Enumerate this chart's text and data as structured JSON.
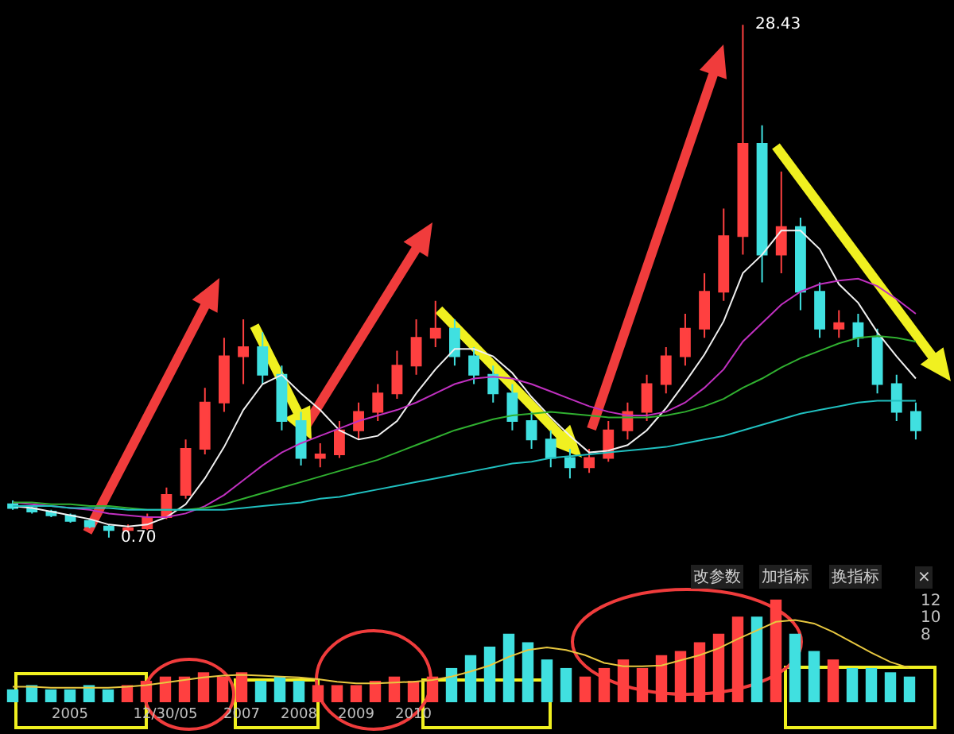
{
  "chart_data": [
    {
      "type": "candlestick",
      "categories": [
        null,
        null,
        null,
        null,
        null,
        null,
        null,
        null,
        null,
        null,
        null,
        null,
        null,
        null,
        null,
        null,
        null,
        null,
        null,
        null,
        null,
        null,
        null,
        null,
        null,
        null,
        null,
        null,
        null,
        null,
        null,
        null,
        null,
        null,
        null,
        null,
        null,
        null,
        null,
        null,
        null,
        null,
        null,
        null,
        null,
        null,
        null,
        null
      ],
      "ohlc": [
        [
          2.5,
          2.7,
          2.2,
          2.3
        ],
        [
          2.3,
          2.4,
          2.0,
          2.1
        ],
        [
          2.1,
          2.2,
          1.8,
          1.9
        ],
        [
          1.9,
          2.0,
          1.5,
          1.6
        ],
        [
          1.6,
          1.7,
          1.2,
          1.3
        ],
        [
          1.3,
          1.4,
          0.7,
          1.1
        ],
        [
          1.1,
          1.4,
          1.0,
          1.2
        ],
        [
          1.2,
          2.0,
          1.1,
          1.8
        ],
        [
          1.8,
          3.4,
          1.7,
          3.0
        ],
        [
          3.0,
          6.0,
          2.8,
          5.5
        ],
        [
          5.5,
          8.8,
          5.2,
          8.0
        ],
        [
          8.0,
          11.5,
          7.5,
          10.5
        ],
        [
          10.5,
          12.5,
          9.0,
          11.0
        ],
        [
          11.0,
          11.8,
          9.0,
          9.5
        ],
        [
          9.5,
          10.0,
          6.5,
          7.0
        ],
        [
          7.0,
          7.5,
          4.6,
          5.0
        ],
        [
          5.0,
          5.8,
          4.5,
          5.2
        ],
        [
          5.2,
          7.0,
          5.0,
          6.5
        ],
        [
          6.5,
          8.0,
          6.0,
          7.5
        ],
        [
          7.5,
          9.0,
          7.0,
          8.5
        ],
        [
          8.5,
          10.8,
          8.2,
          10.0
        ],
        [
          10.0,
          12.5,
          9.5,
          11.5
        ],
        [
          11.5,
          13.5,
          11.0,
          12.0
        ],
        [
          12.0,
          12.5,
          10.0,
          10.5
        ],
        [
          10.5,
          11.0,
          9.0,
          9.5
        ],
        [
          9.5,
          10.0,
          8.0,
          8.5
        ],
        [
          8.5,
          9.0,
          6.5,
          7.0
        ],
        [
          7.0,
          7.5,
          5.5,
          6.0
        ],
        [
          6.0,
          6.5,
          4.5,
          5.0
        ],
        [
          5.0,
          5.5,
          3.9,
          4.5
        ],
        [
          4.5,
          5.5,
          4.2,
          5.0
        ],
        [
          5.0,
          7.0,
          4.8,
          6.5
        ],
        [
          6.5,
          8.0,
          6.0,
          7.5
        ],
        [
          7.5,
          9.5,
          7.0,
          9.0
        ],
        [
          9.0,
          11.0,
          8.5,
          10.5
        ],
        [
          10.5,
          12.8,
          10.0,
          12.0
        ],
        [
          12.0,
          15.0,
          11.5,
          14.0
        ],
        [
          14.0,
          18.5,
          13.5,
          17.0
        ],
        [
          17.0,
          28.43,
          16.0,
          22.0
        ],
        [
          22.0,
          23.0,
          14.5,
          16.0
        ],
        [
          16.0,
          20.5,
          15.0,
          17.5
        ],
        [
          17.5,
          18.0,
          13.0,
          14.0
        ],
        [
          14.0,
          14.5,
          11.5,
          12.0
        ],
        [
          12.0,
          13.0,
          11.5,
          12.3
        ],
        [
          12.3,
          12.8,
          11.0,
          11.5
        ],
        [
          11.5,
          12.0,
          8.5,
          9.0
        ],
        [
          9.0,
          9.5,
          7.0,
          7.5
        ],
        [
          7.5,
          8.0,
          6.0,
          6.5
        ]
      ],
      "colors": [
        "#40e0e0",
        "#40e0e0",
        "#40e0e0",
        "#40e0e0",
        "#40e0e0",
        "#40e0e0",
        "#ff4040",
        "#ff4040",
        "#ff4040",
        "#ff4040",
        "#ff4040",
        "#ff4040",
        "#ff4040",
        "#40e0e0",
        "#40e0e0",
        "#40e0e0",
        "#ff4040",
        "#ff4040",
        "#ff4040",
        "#ff4040",
        "#ff4040",
        "#ff4040",
        "#ff4040",
        "#40e0e0",
        "#40e0e0",
        "#40e0e0",
        "#40e0e0",
        "#40e0e0",
        "#40e0e0",
        "#40e0e0",
        "#ff4040",
        "#ff4040",
        "#ff4040",
        "#ff4040",
        "#ff4040",
        "#ff4040",
        "#ff4040",
        "#ff4040",
        "#ff4040",
        "#40e0e0",
        "#ff4040",
        "#40e0e0",
        "#40e0e0",
        "#ff4040",
        "#40e0e0",
        "#40e0e0",
        "#40e0e0",
        "#40e0e0"
      ],
      "series": [
        {
          "type": "line",
          "color": "#f0f0f0",
          "values": [
            2.4,
            2.3,
            2.1,
            1.9,
            1.7,
            1.4,
            1.3,
            1.4,
            1.8,
            2.5,
            3.9,
            5.6,
            7.6,
            9.0,
            9.5,
            8.5,
            7.6,
            6.5,
            6.0,
            6.2,
            7.0,
            8.5,
            9.8,
            10.9,
            10.9,
            10.5,
            9.6,
            8.3,
            7.2,
            6.2,
            5.3,
            5.4,
            5.7,
            6.5,
            7.7,
            9.1,
            10.6,
            12.4,
            15.0,
            16.0,
            17.3,
            17.3,
            16.3,
            14.4,
            13.4,
            11.8,
            10.5,
            9.3
          ]
        },
        {
          "type": "line",
          "color": "#c030c0",
          "values": [
            2.6,
            2.5,
            2.4,
            2.3,
            2.2,
            2.0,
            1.9,
            1.8,
            1.8,
            2.0,
            2.4,
            3.0,
            3.8,
            4.6,
            5.3,
            5.8,
            6.2,
            6.6,
            7.0,
            7.3,
            7.6,
            8.0,
            8.5,
            9.0,
            9.3,
            9.4,
            9.3,
            9.0,
            8.6,
            8.2,
            7.8,
            7.5,
            7.3,
            7.3,
            7.5,
            8.0,
            8.8,
            9.8,
            11.3,
            12.3,
            13.3,
            14.0,
            14.4,
            14.6,
            14.7,
            14.3,
            13.6,
            12.8
          ]
        },
        {
          "type": "line",
          "color": "#30b030",
          "values": [
            2.6,
            2.6,
            2.5,
            2.5,
            2.4,
            2.4,
            2.3,
            2.2,
            2.2,
            2.2,
            2.3,
            2.5,
            2.8,
            3.1,
            3.4,
            3.7,
            4.0,
            4.3,
            4.6,
            4.9,
            5.3,
            5.7,
            6.1,
            6.5,
            6.8,
            7.1,
            7.3,
            7.4,
            7.5,
            7.4,
            7.3,
            7.2,
            7.2,
            7.2,
            7.3,
            7.5,
            7.8,
            8.2,
            8.8,
            9.3,
            9.9,
            10.4,
            10.8,
            11.2,
            11.5,
            11.6,
            11.5,
            11.3
          ]
        },
        {
          "type": "line",
          "color": "#20c0c0",
          "values": [
            2.4,
            2.4,
            2.4,
            2.3,
            2.3,
            2.3,
            2.2,
            2.2,
            2.2,
            2.2,
            2.2,
            2.2,
            2.3,
            2.4,
            2.5,
            2.6,
            2.8,
            2.9,
            3.1,
            3.3,
            3.5,
            3.7,
            3.9,
            4.1,
            4.3,
            4.5,
            4.7,
            4.8,
            5.0,
            5.1,
            5.2,
            5.3,
            5.4,
            5.5,
            5.6,
            5.8,
            6.0,
            6.2,
            6.5,
            6.8,
            7.1,
            7.4,
            7.6,
            7.8,
            8.0,
            8.1,
            8.1,
            8.1
          ]
        }
      ],
      "annotations": [
        "28.43",
        "0.70"
      ],
      "tick_labels": false
    },
    {
      "type": "bar",
      "categories": [
        null,
        null,
        null,
        "2005",
        null,
        null,
        null,
        null,
        "12/30/05",
        null,
        null,
        null,
        "2007",
        null,
        null,
        "2008",
        null,
        null,
        "2009",
        null,
        null,
        "2010",
        null,
        null,
        null,
        null,
        null,
        null,
        null,
        null,
        null,
        null,
        null,
        null,
        null,
        null,
        null,
        null,
        null,
        null,
        null,
        null,
        null,
        null,
        null,
        null,
        null,
        null
      ],
      "series": [
        {
          "type": "bar",
          "values": [
            1.5,
            2,
            1.5,
            1.5,
            2,
            1.5,
            2,
            2.5,
            3,
            3,
            3.5,
            3,
            3.5,
            2.5,
            3,
            2.5,
            2,
            2,
            2,
            2.5,
            3,
            2.5,
            3,
            4,
            5.5,
            6.5,
            8,
            7,
            5,
            4,
            3,
            4,
            5,
            4,
            5.5,
            6,
            7,
            8,
            10,
            10,
            12,
            8,
            6,
            5,
            4,
            4,
            3.5,
            3
          ],
          "colors": [
            "#40e0e0",
            "#40e0e0",
            "#40e0e0",
            "#40e0e0",
            "#40e0e0",
            "#40e0e0",
            "#ff4040",
            "#ff4040",
            "#ff4040",
            "#ff4040",
            "#ff4040",
            "#ff4040",
            "#ff4040",
            "#40e0e0",
            "#40e0e0",
            "#40e0e0",
            "#ff4040",
            "#ff4040",
            "#ff4040",
            "#ff4040",
            "#ff4040",
            "#ff4040",
            "#ff4040",
            "#40e0e0",
            "#40e0e0",
            "#40e0e0",
            "#40e0e0",
            "#40e0e0",
            "#40e0e0",
            "#40e0e0",
            "#ff4040",
            "#ff4040",
            "#ff4040",
            "#ff4040",
            "#ff4040",
            "#ff4040",
            "#ff4040",
            "#ff4040",
            "#ff4040",
            "#40e0e0",
            "#ff4040",
            "#40e0e0",
            "#40e0e0",
            "#ff4040",
            "#40e0e0",
            "#40e0e0",
            "#40e0e0",
            "#40e0e0"
          ]
        },
        {
          "type": "line",
          "color": "#e8c840",
          "values": [
            1.8,
            1.8,
            1.7,
            1.7,
            1.7,
            1.7,
            1.8,
            2,
            2.3,
            2.6,
            2.9,
            3.1,
            3.2,
            3.1,
            3,
            2.9,
            2.7,
            2.4,
            2.2,
            2.2,
            2.3,
            2.4,
            2.6,
            3,
            3.6,
            4.3,
            5.3,
            6.1,
            6.4,
            6.1,
            5.5,
            4.6,
            4.2,
            4.2,
            4.3,
            4.9,
            5.5,
            6.3,
            7.4,
            8.4,
            9.4,
            9.6,
            9.2,
            8.2,
            7,
            5.8,
            4.7,
            4
          ]
        }
      ],
      "ylim": [
        0,
        13
      ],
      "yticks": [
        8,
        10,
        12
      ],
      "annotations": [
        "改参数",
        "加指标",
        "换指标",
        "×"
      ]
    }
  ]
}
